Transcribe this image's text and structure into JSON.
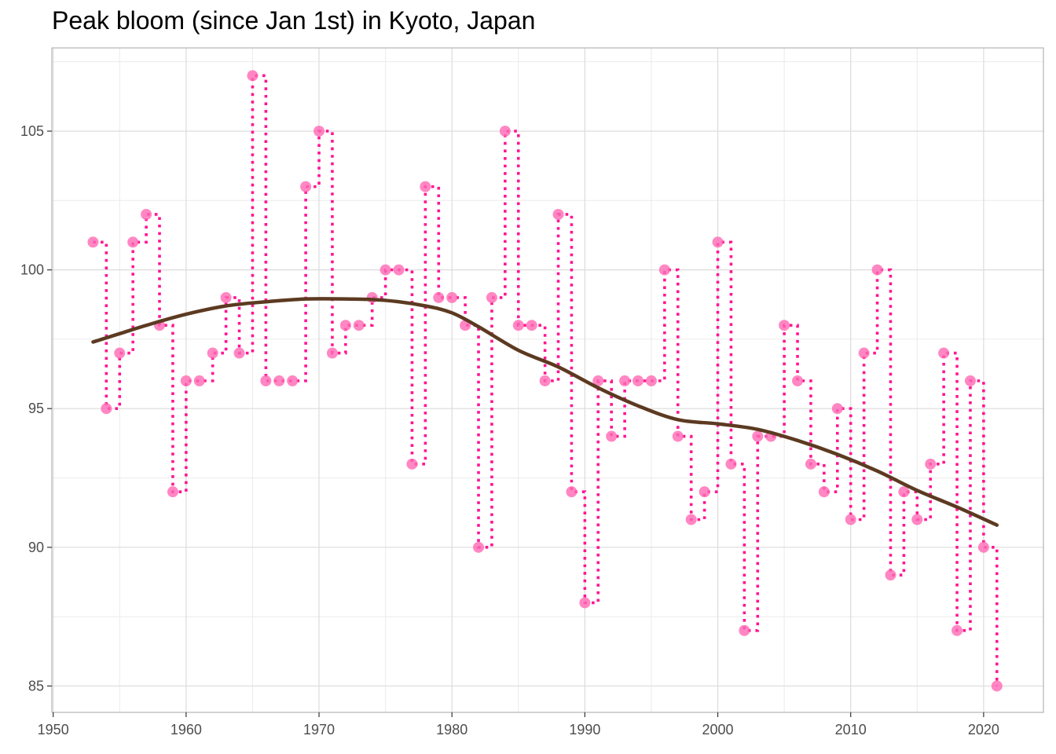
{
  "chart_data": {
    "type": "line",
    "title": "Peak bloom (since Jan 1st) in Kyoto, Japan",
    "xlabel": "",
    "ylabel": "",
    "xlim": [
      1949.9,
      2024.5
    ],
    "ylim": [
      84.05,
      108.0
    ],
    "x_ticks": [
      1950,
      1960,
      1970,
      1980,
      1990,
      2000,
      2010,
      2020
    ],
    "y_ticks": [
      85,
      90,
      95,
      100,
      105
    ],
    "grid": true,
    "colors": {
      "points": "#ff69b4",
      "step_line": "#ff1493",
      "smooth": "#5c3a21",
      "grid": "#dcdcdc",
      "panel_border": "#b3b3b3"
    },
    "series": [
      {
        "type": "scatter+step",
        "x": [
          1953,
          1954,
          1955,
          1956,
          1957,
          1958,
          1959,
          1960,
          1961,
          1962,
          1963,
          1964,
          1965,
          1966,
          1967,
          1968,
          1969,
          1970,
          1971,
          1972,
          1973,
          1974,
          1975,
          1976,
          1977,
          1978,
          1979,
          1980,
          1981,
          1982,
          1983,
          1984,
          1985,
          1986,
          1987,
          1988,
          1989,
          1990,
          1991,
          1992,
          1993,
          1994,
          1995,
          1996,
          1997,
          1998,
          1999,
          2000,
          2001,
          2002,
          2003,
          2004,
          2005,
          2006,
          2007,
          2008,
          2009,
          2010,
          2011,
          2012,
          2013,
          2014,
          2015,
          2016,
          2017,
          2018,
          2019,
          2020,
          2021
        ],
        "y": [
          101,
          95,
          97,
          101,
          102,
          98,
          92,
          96,
          96,
          97,
          99,
          97,
          107,
          96,
          96,
          96,
          103,
          105,
          97,
          98,
          98,
          99,
          100,
          100,
          93,
          103,
          99,
          99,
          98,
          90,
          99,
          105,
          98,
          98,
          96,
          102,
          92,
          88,
          96,
          94,
          96,
          96,
          96,
          100,
          94,
          91,
          92,
          101,
          93,
          87,
          94,
          94,
          98,
          96,
          93,
          92,
          95,
          91,
          97,
          100,
          89,
          92,
          91,
          93,
          97,
          87,
          96,
          90,
          85
        ]
      },
      {
        "type": "smooth",
        "x": [
          1953,
          1955,
          1957,
          1960,
          1963,
          1966,
          1969,
          1972,
          1975,
          1978,
          1980,
          1982,
          1985,
          1988,
          1991,
          1994,
          1997,
          2000,
          2003,
          2006,
          2009,
          2012,
          2015,
          2018,
          2021
        ],
        "y": [
          97.4,
          97.7,
          98.0,
          98.4,
          98.7,
          98.85,
          98.95,
          98.95,
          98.9,
          98.7,
          98.45,
          97.95,
          97.1,
          96.5,
          95.75,
          95.1,
          94.6,
          94.45,
          94.25,
          93.85,
          93.35,
          92.75,
          92.05,
          91.45,
          90.8
        ]
      }
    ]
  }
}
